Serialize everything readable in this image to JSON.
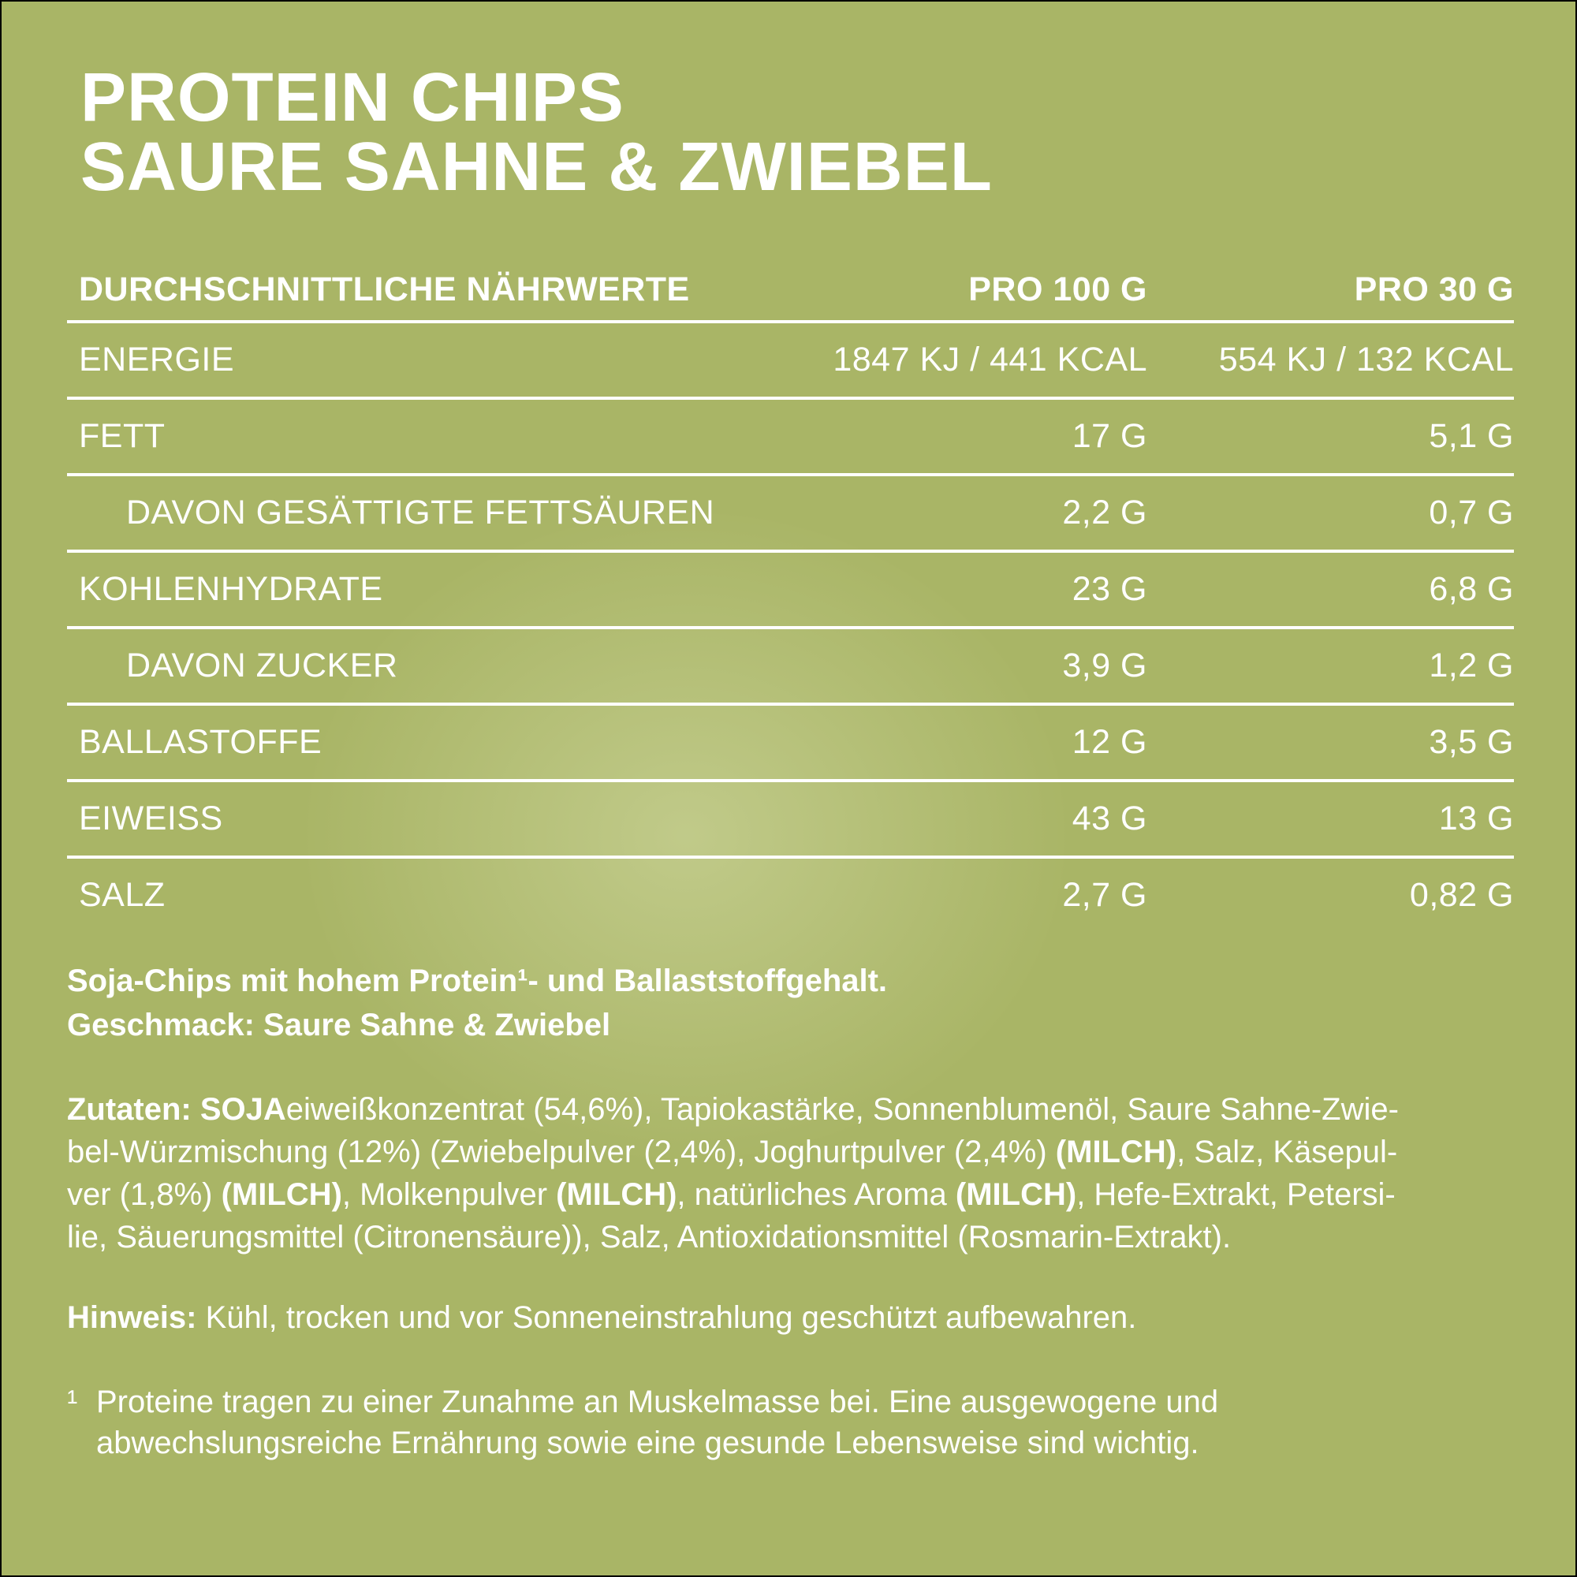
{
  "colors": {
    "background": "#a9b566",
    "background_highlight": "#c6cf94",
    "text": "#ffffff",
    "border": "#000000"
  },
  "title": {
    "line1": "PROTEIN CHIPS",
    "line2": "SAURE SAHNE & ZWIEBEL"
  },
  "table": {
    "header": {
      "col1": "DURCHSCHNITTLICHE NÄHRWERTE",
      "col2": "PRO 100 G",
      "col3": "PRO 30 G"
    },
    "rows": [
      {
        "label": "ENERGIE",
        "per100": "1847 KJ / 441 KCAL",
        "per30": "554 KJ / 132 KCAL",
        "indent": false
      },
      {
        "label": "FETT",
        "per100": "17 G",
        "per30": "5,1 G",
        "indent": false
      },
      {
        "label": "DAVON GESÄTTIGTE FETTSÄUREN",
        "per100": "2,2 G",
        "per30": "0,7 G",
        "indent": true
      },
      {
        "label": "KOHLENHYDRATE",
        "per100": "23 G",
        "per30": "6,8 G",
        "indent": false
      },
      {
        "label": "DAVON ZUCKER",
        "per100": "3,9 G",
        "per30": "1,2 G",
        "indent": true
      },
      {
        "label": "BALLASTOFFE",
        "per100": "12 G",
        "per30": "3,5 G",
        "indent": false
      },
      {
        "label": "EIWEISS",
        "per100": "43 G",
        "per30": "13 G",
        "indent": false
      },
      {
        "label": "SALZ",
        "per100": "2,7 G",
        "per30": "0,82 G",
        "indent": false
      }
    ]
  },
  "intro": {
    "lines": [
      [
        {
          "t": "Soja-Chips mit hohem Protein¹- und Ballaststoffgehalt.",
          "b": true
        }
      ],
      [
        {
          "t": "Geschmack: Saure Sahne & Zwiebel",
          "b": true
        }
      ]
    ]
  },
  "ingredients": {
    "lines": [
      [
        {
          "t": "Zutaten: SOJA",
          "b": true
        },
        {
          "t": "eiweißkonzentrat (54,6%), Tapiokastärke, Sonnenblumenöl, Saure Sahne-Zwie-",
          "b": false
        }
      ],
      [
        {
          "t": "bel-Würzmischung (12%) (Zwiebelpulver (2,4%), Joghurtpulver (2,4%) ",
          "b": false
        },
        {
          "t": "(MILCH)",
          "b": true
        },
        {
          "t": ", Salz, Käsepul-",
          "b": false
        }
      ],
      [
        {
          "t": "ver (1,8%) ",
          "b": false
        },
        {
          "t": "(MILCH)",
          "b": true
        },
        {
          "t": ", Molkenpulver ",
          "b": false
        },
        {
          "t": "(MILCH)",
          "b": true
        },
        {
          "t": ", natürliches Aroma ",
          "b": false
        },
        {
          "t": "(MILCH)",
          "b": true
        },
        {
          "t": ", Hefe-Extrakt, Petersi-",
          "b": false
        }
      ],
      [
        {
          "t": "lie, Säuerungsmittel (Citronensäure)), Salz, Antioxidationsmittel (Rosmarin-Extrakt).",
          "b": false
        }
      ]
    ]
  },
  "note": {
    "lines": [
      [
        {
          "t": "Hinweis:",
          "b": true
        },
        {
          "t": " Kühl, trocken und vor Sonneneinstrahlung geschützt aufbewahren.",
          "b": false
        }
      ]
    ]
  },
  "footnote": {
    "marker": "¹",
    "lines": [
      [
        {
          "t": "Proteine tragen zu einer Zunahme an Muskelmasse bei. Eine ausgewogene und",
          "b": false
        }
      ],
      [
        {
          "t": "abwechslungsreiche Ernährung sowie eine gesunde Lebensweise sind wichtig.",
          "b": false
        }
      ]
    ]
  }
}
